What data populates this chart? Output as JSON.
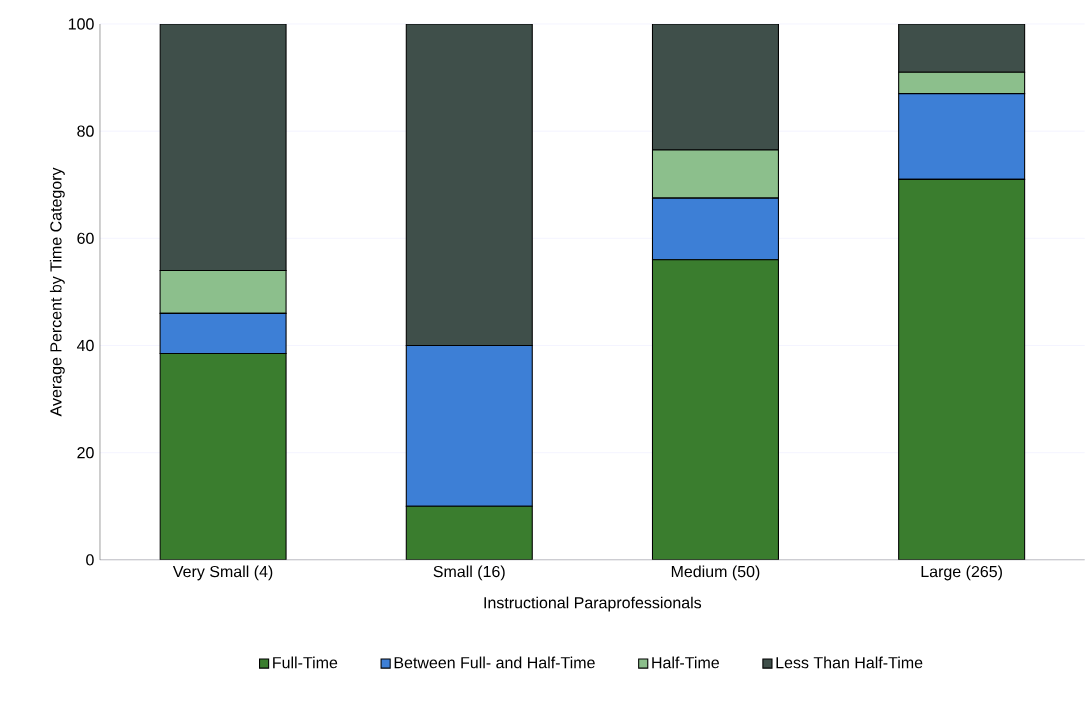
{
  "chart_data": {
    "type": "bar",
    "stacked": true,
    "xlabel": "Instructional Paraprofessionals",
    "ylabel": "Average Percent by Time Category",
    "categories": [
      "Very Small (4)",
      "Small (16)",
      "Medium (50)",
      "Large (265)"
    ],
    "series": [
      {
        "name": "Full-Time",
        "color": "#3a7d2e",
        "values": [
          38.5,
          10,
          56,
          71
        ]
      },
      {
        "name": "Between Full- and Half-Time",
        "color": "#3d7fd6",
        "values": [
          7.5,
          30,
          11.5,
          16
        ]
      },
      {
        "name": "Half-Time",
        "color": "#8cbf8c",
        "values": [
          8,
          0,
          9,
          4
        ]
      },
      {
        "name": "Less Than Half-Time",
        "color": "#3f4f4a",
        "values": [
          46,
          60,
          23.5,
          9
        ]
      }
    ],
    "ylim": [
      0,
      100
    ],
    "yticks": [
      0,
      20,
      40,
      60,
      80,
      100
    ],
    "grid": "y",
    "legend": "bottom"
  }
}
